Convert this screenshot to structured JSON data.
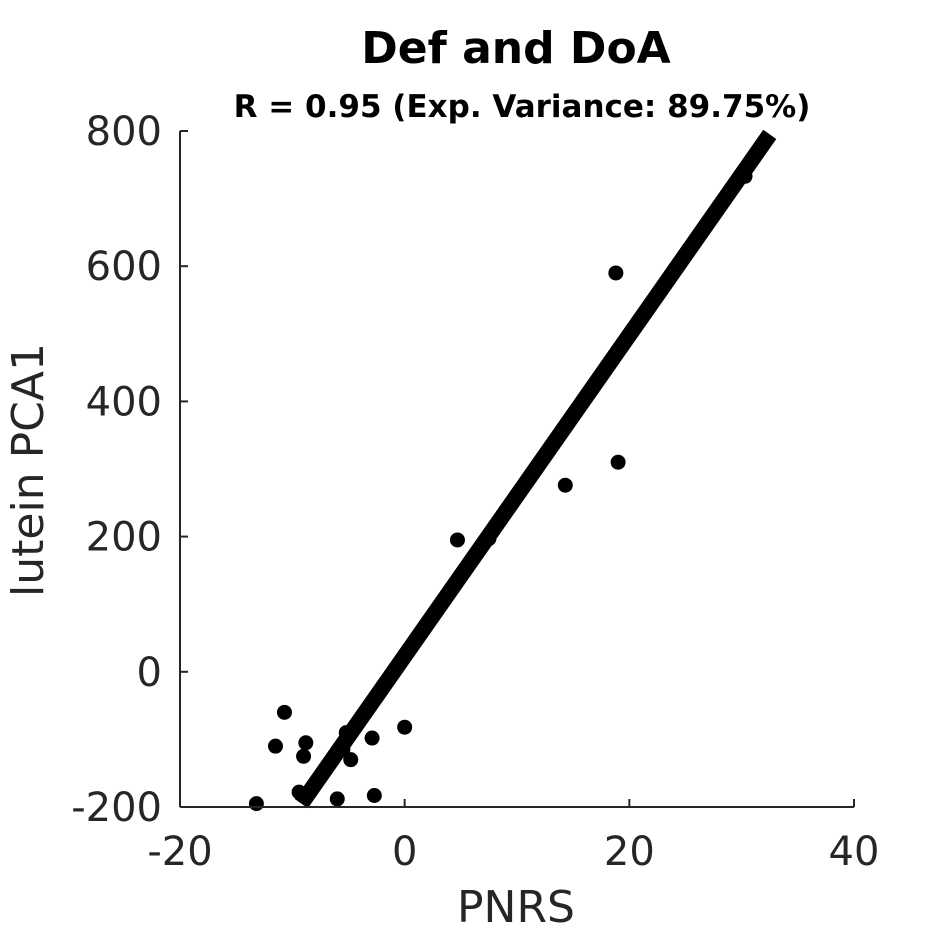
{
  "chart_data": {
    "type": "scatter",
    "title": "Def and DoA",
    "subtitle": "R = 0.95 (Exp. Variance: 89.75%)",
    "xlabel": "PNRS",
    "ylabel": "lutein PCA1",
    "xlim": [
      -20,
      40
    ],
    "ylim": [
      -200,
      800
    ],
    "xticks": [
      -20,
      0,
      20,
      40
    ],
    "yticks": [
      -200,
      0,
      200,
      400,
      600,
      800
    ],
    "grid": false,
    "points": [
      {
        "x": -13.2,
        "y": -195
      },
      {
        "x": -11.5,
        "y": -110
      },
      {
        "x": -10.7,
        "y": -60
      },
      {
        "x": -9.4,
        "y": -178
      },
      {
        "x": -9.0,
        "y": -125
      },
      {
        "x": -8.8,
        "y": -105
      },
      {
        "x": -6.0,
        "y": -188
      },
      {
        "x": -5.5,
        "y": -115
      },
      {
        "x": -5.2,
        "y": -90
      },
      {
        "x": -4.8,
        "y": -130
      },
      {
        "x": -2.9,
        "y": -98
      },
      {
        "x": -2.7,
        "y": -183
      },
      {
        "x": 0.0,
        "y": -82
      },
      {
        "x": 4.7,
        "y": 195
      },
      {
        "x": 7.5,
        "y": 197
      },
      {
        "x": 14.3,
        "y": 276
      },
      {
        "x": 18.8,
        "y": 590
      },
      {
        "x": 19.0,
        "y": 310
      },
      {
        "x": 30.3,
        "y": 733
      }
    ],
    "fit_line": {
      "x": [
        -9.2,
        32.5
      ],
      "y": [
        -195,
        795
      ]
    },
    "color": "#000000"
  }
}
